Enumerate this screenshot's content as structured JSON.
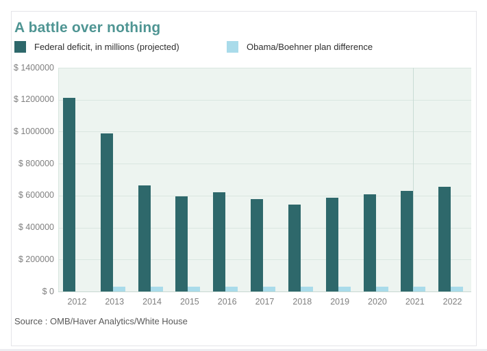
{
  "header": {
    "title": "A battle over nothing",
    "title_color": "#4f9593"
  },
  "legend": {
    "items": [
      {
        "label": "Federal deficit, in millions (projected)",
        "color": "#2e686b"
      },
      {
        "label": "Obama/Boehner plan difference",
        "color": "#a9dbea"
      }
    ]
  },
  "source": "Source : OMB/Haver Analytics/White House",
  "colors": {
    "deficit_bar": "#2e686b",
    "difference_bar": "#a9dbea",
    "plot_background": "#edf4f0",
    "gridline": "#d9e6e0",
    "axis_text": "#7f7f7f"
  },
  "chart_data": {
    "type": "bar",
    "title": "A battle over nothing",
    "categories": [
      "2012",
      "2013",
      "2014",
      "2015",
      "2016",
      "2017",
      "2018",
      "2019",
      "2020",
      "2021",
      "2022"
    ],
    "series": [
      {
        "name": "Federal deficit, in millions (projected)",
        "color": "#2e686b",
        "values": [
          1210000,
          990000,
          665000,
          595000,
          620000,
          580000,
          545000,
          585000,
          610000,
          630000,
          655000
        ]
      },
      {
        "name": "Obama/Boehner plan difference",
        "color": "#a9dbea",
        "values": [
          0,
          30000,
          30000,
          30000,
          30000,
          30000,
          30000,
          30000,
          30000,
          30000,
          30000
        ]
      }
    ],
    "xlabel": "",
    "ylabel": "",
    "ylim": [
      0,
      1400000
    ],
    "ytick_step": 200000,
    "ytick_labels": [
      "$ 1400000",
      "$ 1200000",
      "$ 1000000",
      "$ 800000",
      "$ 600000",
      "$ 400000",
      "$ 200000",
      "$ 0"
    ],
    "grid": true,
    "legend_position": "top-left",
    "vline_x_fraction": 0.859
  }
}
